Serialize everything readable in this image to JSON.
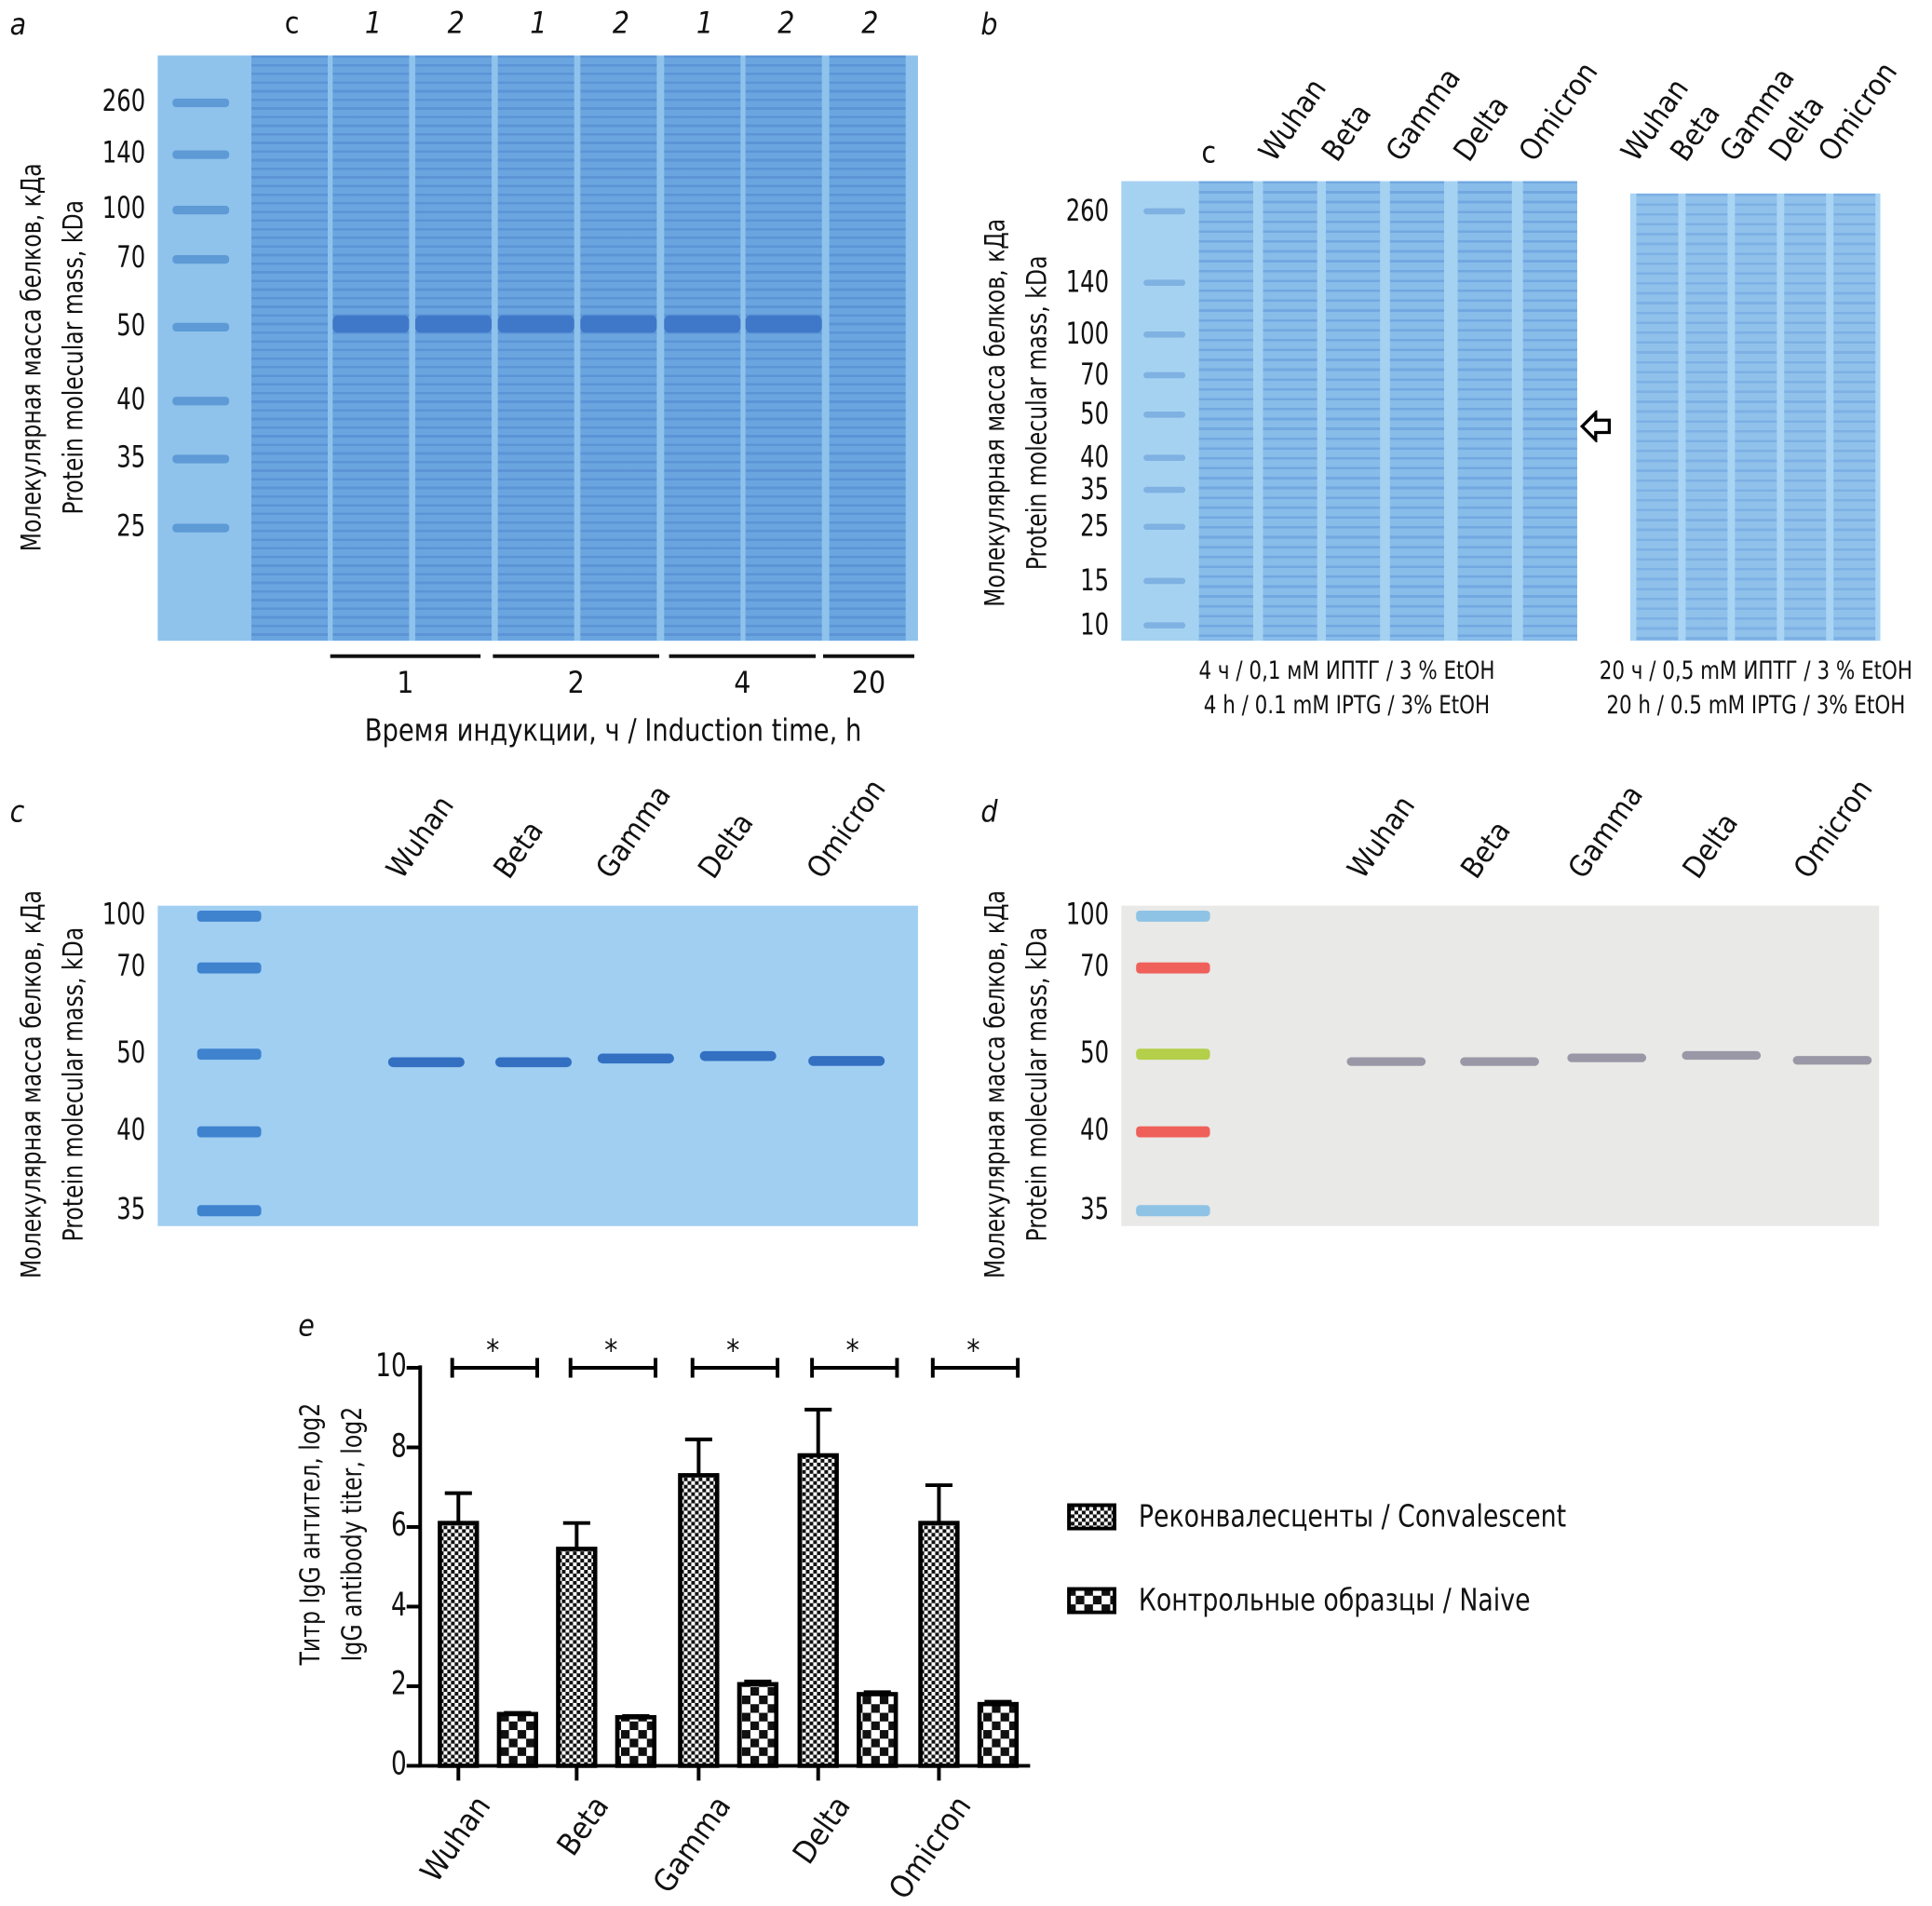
{
  "panel_labels": {
    "a": "a",
    "b": "b",
    "c": "c",
    "d": "d",
    "e": "e"
  },
  "y_axis_title": {
    "ru": "Молекулярная масса белков, кДа",
    "en": "Protein molecular mass, kDa"
  },
  "panel_a": {
    "lanes": [
      "c",
      "1",
      "2",
      "1",
      "2",
      "1",
      "2",
      "2"
    ],
    "markers": [
      "260",
      "140",
      "100",
      "70",
      "50",
      "40",
      "35",
      "25"
    ],
    "groups": [
      "1",
      "2",
      "4",
      "20"
    ],
    "x_title": "Время индукции, ч / Induction time, h"
  },
  "panel_b": {
    "lanes_left": [
      "c",
      "Wuhan",
      "Beta",
      "Gamma",
      "Delta",
      "Omicron"
    ],
    "lanes_right": [
      "Wuhan",
      "Beta",
      "Gamma",
      "Delta",
      "Omicron"
    ],
    "markers": [
      "260",
      "140",
      "100",
      "70",
      "50",
      "40",
      "35",
      "25",
      "15",
      "10"
    ],
    "caption_left_ru": "4 ч / 0,1 мМ ИПТГ / 3 % EtOH",
    "caption_left_en": "4 h / 0.1 mM IPTG / 3% EtOH",
    "caption_right_ru": "20 ч / 0,5 mM ИПТГ / 3 % EtOH",
    "caption_right_en": "20 h / 0.5 mM IPTG / 3% EtOH",
    "arrow_icon": "arrow-left-outline-icon"
  },
  "panel_c": {
    "lanes": [
      "Wuhan",
      "Beta",
      "Gamma",
      "Delta",
      "Omicron"
    ],
    "markers": [
      "100",
      "70",
      "50",
      "40",
      "35"
    ]
  },
  "panel_d": {
    "lanes": [
      "Wuhan",
      "Beta",
      "Gamma",
      "Delta",
      "Omicron"
    ],
    "markers": [
      "100",
      "70",
      "50",
      "40",
      "35"
    ],
    "marker_colors": [
      "#8ec3e6",
      "#f0605a",
      "#b4cf4a",
      "#f0605a",
      "#8ec3e6"
    ]
  },
  "chart_data": {
    "type": "bar",
    "categories": [
      "Wuhan",
      "Beta",
      "Gamma",
      "Delta",
      "Omicron"
    ],
    "ylabel_ru": "Титр IgG антител, log2",
    "ylabel_en": "IgG antibody titer, log2",
    "ylim": [
      0,
      10
    ],
    "yticks": [
      "0",
      "2",
      "4",
      "6",
      "8",
      "10"
    ],
    "series": [
      {
        "name": "Реконвалесценты / Convalescent",
        "values": [
          6.1,
          5.45,
          7.3,
          7.8,
          6.1
        ],
        "error_upper": [
          0.75,
          0.65,
          0.9,
          1.15,
          0.95
        ],
        "pattern": "fine-checker"
      },
      {
        "name": "Контрольные образцы / Naive",
        "values": [
          1.3,
          1.22,
          2.05,
          1.8,
          1.55
        ],
        "error_upper": [
          0.03,
          0.03,
          0.07,
          0.05,
          0.06
        ],
        "pattern": "coarse-checker"
      }
    ],
    "significance": [
      "*",
      "*",
      "*",
      "*",
      "*"
    ],
    "legend_position": "right"
  }
}
